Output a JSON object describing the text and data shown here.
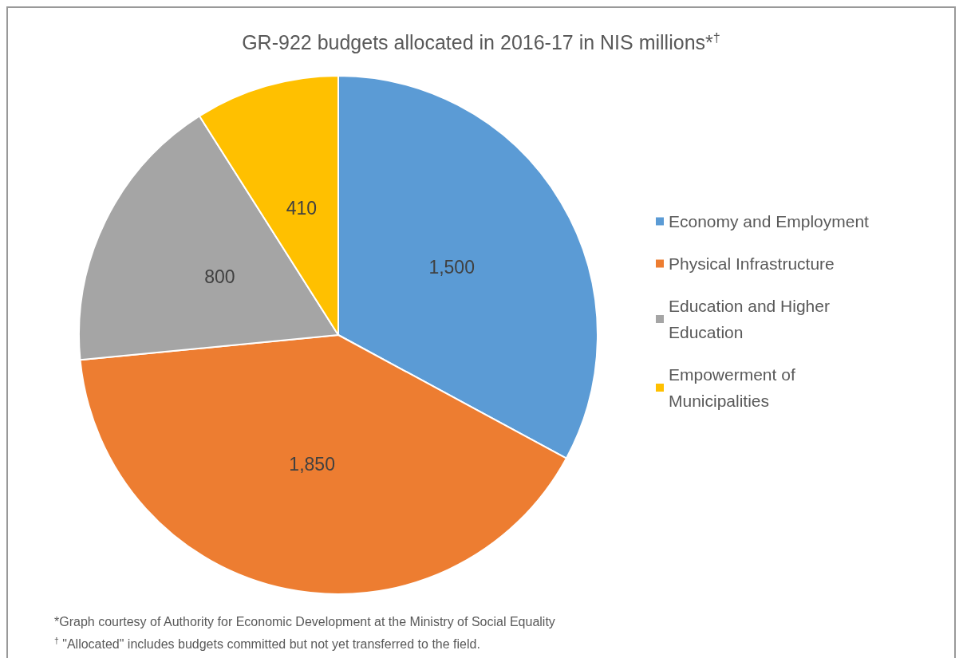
{
  "chart_data": {
    "type": "pie",
    "title": "GR-922 budgets allocated in 2016-17 in NIS millions*$^{†}$",
    "categories": [
      "Economy and Employment",
      "Physical Infrastructure",
      "Education and Higher Education",
      "Empowerment of Municipalities"
    ],
    "values": [
      1500,
      1850,
      800,
      410
    ],
    "colors": [
      "#5b9bd5",
      "#ed7d31",
      "#a5a5a5",
      "#ffc000"
    ],
    "value_labels": [
      "1,500",
      "1,850",
      "800",
      "410"
    ],
    "legend": "right",
    "annotations": [
      "*Graph courtesy of Authority for Economic Development at the Ministry of Social Equality",
      "$^{†}$ \"Allocated\" includes budgets committed but not yet transferred to the field."
    ]
  }
}
